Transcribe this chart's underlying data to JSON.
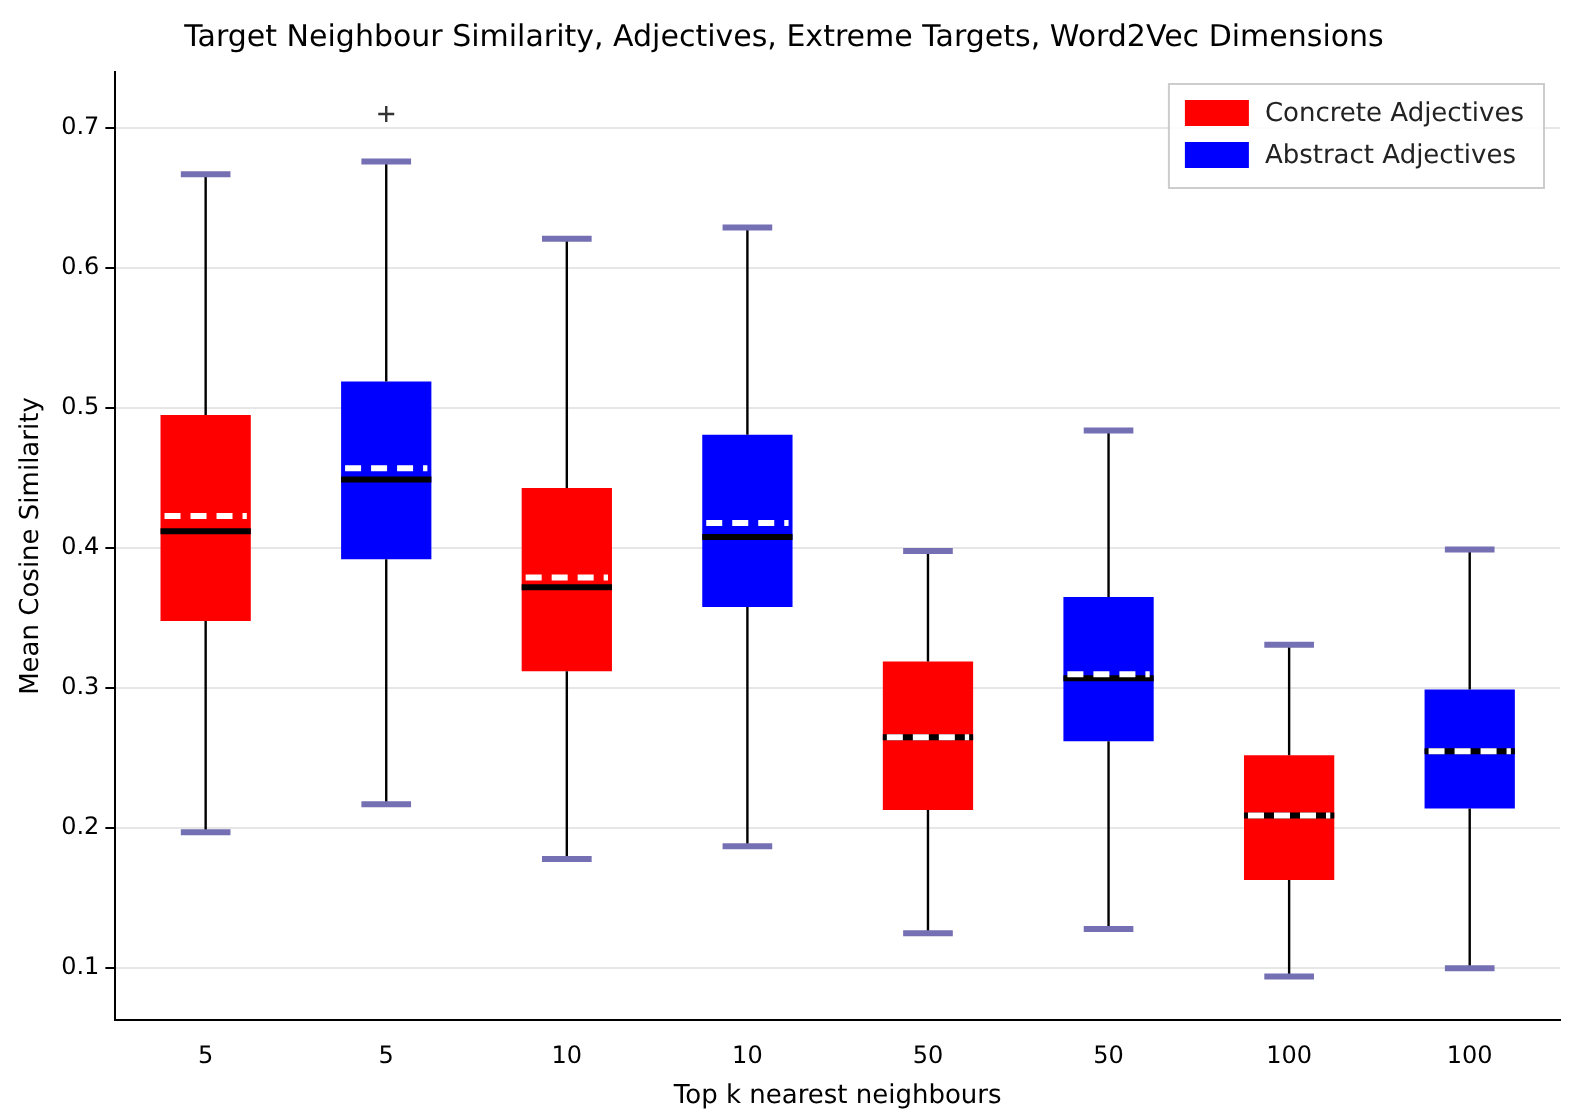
{
  "chart_data": {
    "type": "box",
    "title": "Target Neighbour Similarity, Adjectives, Extreme Targets, Word2Vec Dimensions",
    "xlabel": "Top k nearest neighbours",
    "ylabel": "Mean Cosine Similarity",
    "categories": [
      "5",
      "5",
      "10",
      "10",
      "50",
      "50",
      "100",
      "100"
    ],
    "series": [
      {
        "name": "Concrete Adjectives",
        "color": "#ff0000",
        "boxes": [
          {
            "low": 0.197,
            "q1": 0.348,
            "median": 0.412,
            "q3": 0.495,
            "high": 0.667,
            "mean": 0.423
          },
          null,
          {
            "low": 0.178,
            "q1": 0.312,
            "median": 0.372,
            "q3": 0.443,
            "high": 0.621,
            "mean": 0.379
          },
          null,
          {
            "low": 0.125,
            "q1": 0.213,
            "median": 0.265,
            "q3": 0.319,
            "high": 0.398,
            "mean": 0.265
          },
          null,
          {
            "low": 0.094,
            "q1": 0.163,
            "median": 0.209,
            "q3": 0.252,
            "high": 0.331,
            "mean": 0.209
          },
          null
        ]
      },
      {
        "name": "Abstract Adjectives",
        "color": "#0000ff",
        "boxes": [
          null,
          {
            "low": 0.217,
            "q1": 0.392,
            "median": 0.449,
            "q3": 0.519,
            "high": 0.676,
            "mean": 0.457,
            "outliers": [
              0.71
            ]
          },
          null,
          {
            "low": 0.187,
            "q1": 0.358,
            "median": 0.408,
            "q3": 0.481,
            "high": 0.629,
            "mean": 0.418
          },
          null,
          {
            "low": 0.128,
            "q1": 0.262,
            "median": 0.307,
            "q3": 0.365,
            "high": 0.484,
            "mean": 0.31
          },
          null,
          {
            "low": 0.1,
            "q1": 0.214,
            "median": 0.255,
            "q3": 0.299,
            "high": 0.399,
            "mean": 0.255
          }
        ]
      }
    ],
    "ylim": [
      0.063,
      0.74
    ],
    "yticks": [
      0.1,
      0.2,
      0.3,
      0.4,
      0.5,
      0.6,
      0.7
    ],
    "grid": "y",
    "legend": "top right"
  }
}
